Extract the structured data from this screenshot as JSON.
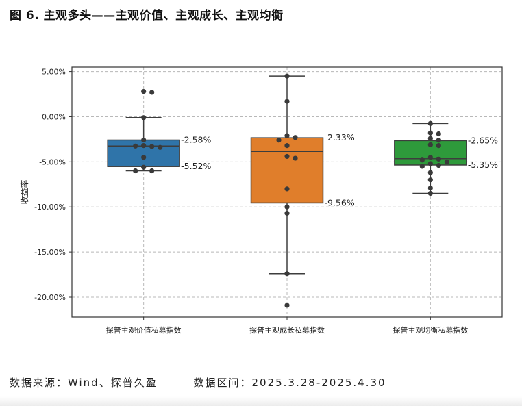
{
  "title": "图 6. 主观多头——主观价值、主观成长、主观均衡",
  "source": {
    "data_source": "数据来源：Wind、探普久盈",
    "data_range": "数据区间：2025.3.28-2025.4.30"
  },
  "chart_data": {
    "type": "box",
    "ylabel": "收益率",
    "xlabel": "",
    "ylim": [
      -22.2,
      5.5
    ],
    "yticks": [
      5,
      0,
      -5,
      -10,
      -15,
      -20
    ],
    "ytick_labels": [
      "5.00%",
      "0.00%",
      "-5.00%",
      "-10.00%",
      "-15.00%",
      "-20.00%"
    ],
    "grid": true,
    "categories": [
      "探普主观价值私募指数",
      "探普主观成长私募指数",
      "探普主观均衡私募指数"
    ],
    "boxes": [
      {
        "name": "探普主观价值私募指数",
        "color": "#2f74a9",
        "q1": -5.52,
        "median": -3.25,
        "q3": -2.58,
        "whisker_low": -6.0,
        "whisker_high": -0.1,
        "q1_label": "-5.52%",
        "q3_label": "-2.58%",
        "points": [
          2.8,
          2.7,
          -0.1,
          -2.58,
          -3.2,
          -3.3,
          -3.25,
          -3.4,
          -4.5,
          -5.6,
          -6.0,
          -6.0
        ]
      },
      {
        "name": "探普主观成长私募指数",
        "color": "#e07e2b",
        "q1": -9.56,
        "median": -3.85,
        "q3": -2.33,
        "whisker_low": -17.4,
        "whisker_high": 4.5,
        "q1_label": "-9.56%",
        "q3_label": "-2.33%",
        "points": [
          4.5,
          1.7,
          -2.1,
          -2.3,
          -2.6,
          -3.2,
          -4.4,
          -4.6,
          -8.0,
          -10.0,
          -10.7,
          -17.4,
          -20.9
        ]
      },
      {
        "name": "探普主观均衡私募指数",
        "color": "#2e9a3b",
        "q1": -5.35,
        "median": -4.65,
        "q3": -2.65,
        "whisker_low": -8.5,
        "whisker_high": -0.75,
        "q1_label": "-5.35%",
        "q3_label": "-2.65%",
        "points": [
          -0.75,
          -1.8,
          -1.9,
          -2.4,
          -2.6,
          -3.1,
          -3.2,
          -4.5,
          -4.7,
          -4.8,
          -5.0,
          -5.2,
          -5.4,
          -5.5,
          -6.2,
          -7.0,
          -7.9,
          -8.5
        ]
      }
    ]
  }
}
